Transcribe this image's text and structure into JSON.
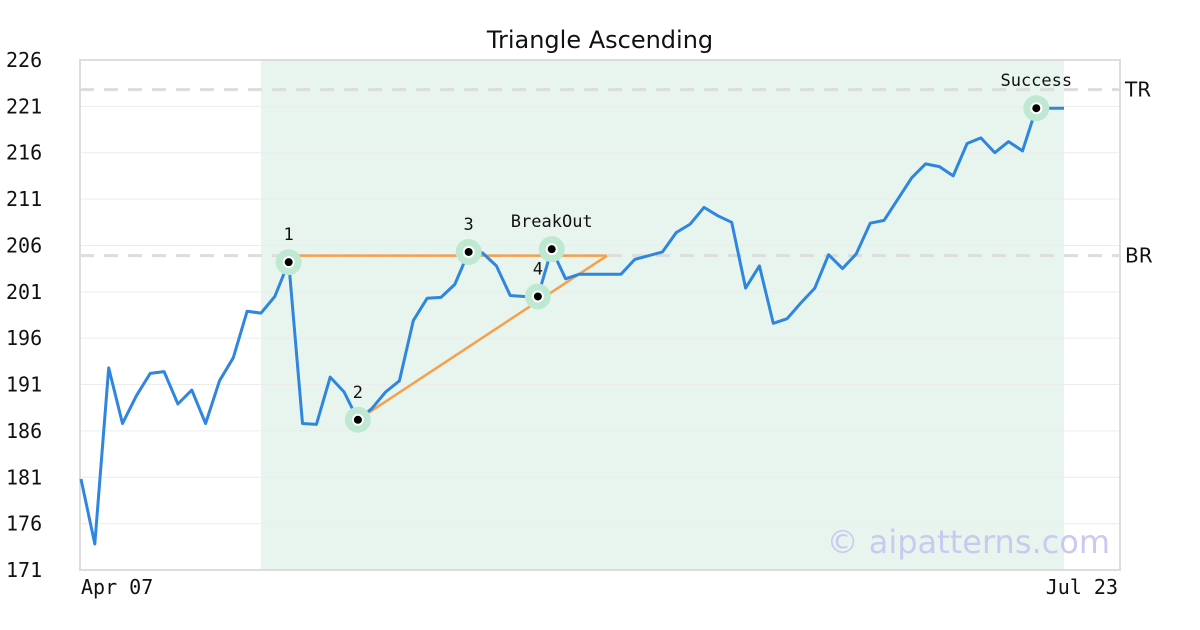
{
  "chart_data": {
    "type": "line",
    "title": "Triangle Ascending",
    "watermark": "© aipatterns.com",
    "x_start_label": "Apr 07",
    "x_end_label": "Jul 23",
    "ylim": [
      171,
      226
    ],
    "yticks": [
      "226",
      "221",
      "216",
      "211",
      "206",
      "201",
      "196",
      "191",
      "186",
      "181",
      "176",
      "171"
    ],
    "grid": true,
    "colors": {
      "price": "#2e86de",
      "pattern": "#f5a04a",
      "highlight": "#e8f5ee",
      "marker_ring": "#bfe8d2",
      "reference": "#dddddd"
    },
    "series": [
      {
        "values": [
          180.8,
          173.8,
          192.8,
          186.8,
          189.8,
          192.2,
          192.4,
          188.9,
          190.4,
          186.8,
          191.4,
          193.9,
          198.9,
          198.7,
          200.5,
          204.2,
          186.8,
          186.7,
          191.8,
          190.2,
          187.2,
          188.4,
          190.2,
          191.4,
          197.9,
          200.3,
          200.4,
          201.8,
          205.3,
          205.2,
          203.8,
          200.6,
          200.5,
          200.5,
          205.6,
          202.4,
          202.9,
          202.9,
          202.9,
          202.9,
          204.5,
          204.9,
          205.3,
          207.4,
          208.3,
          210.1,
          209.2,
          208.5,
          201.4,
          203.8,
          197.6,
          198.1,
          199.8,
          201.4,
          205.0,
          203.5,
          205.1,
          208.4,
          208.7,
          211.0,
          213.3,
          214.8,
          214.5,
          213.5,
          217.0,
          217.6,
          216.0,
          217.2,
          216.2,
          220.8,
          220.8,
          220.8
        ]
      }
    ],
    "pattern_lines": [
      {
        "name": "resistance",
        "from": [
          15,
          204.9
        ],
        "to": [
          38,
          204.9
        ]
      },
      {
        "name": "support",
        "from": [
          20,
          187.2
        ],
        "to": [
          38,
          204.9
        ]
      }
    ],
    "reference_lines": [
      {
        "label": "TR",
        "y": 222.8
      },
      {
        "label": "BR",
        "y": 204.9
      }
    ],
    "highlight_range": [
      13,
      71
    ],
    "points": [
      {
        "label": "1",
        "x": 15,
        "y": 204.2,
        "label_pos": "above"
      },
      {
        "label": "2",
        "x": 20,
        "y": 187.2,
        "label_pos": "above"
      },
      {
        "label": "3",
        "x": 28,
        "y": 205.3,
        "label_pos": "above"
      },
      {
        "label": "4",
        "x": 33,
        "y": 200.5,
        "label_pos": "above"
      },
      {
        "label": "BreakOut",
        "x": 34,
        "y": 205.6,
        "label_pos": "above"
      },
      {
        "label": "Success",
        "x": 69,
        "y": 220.8,
        "label_pos": "above"
      }
    ]
  }
}
